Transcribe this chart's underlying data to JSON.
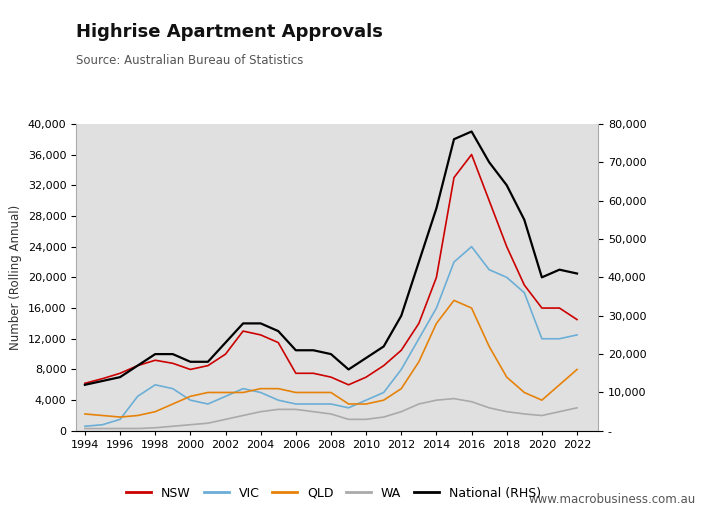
{
  "title": "Highrise Apartment Approvals",
  "source": "Source: Australian Bureau of Statistics",
  "ylabel_left": "Number (Rolling Annual)",
  "website": "www.macrobusiness.com.au",
  "bg_color": "#e0e0e0",
  "fig_bg_color": "#ffffff",
  "left_ylim": [
    0,
    40000
  ],
  "right_ylim": [
    0,
    80000
  ],
  "left_yticks": [
    0,
    4000,
    8000,
    12000,
    16000,
    20000,
    24000,
    28000,
    32000,
    36000,
    40000
  ],
  "right_yticks": [
    0,
    10000,
    20000,
    30000,
    40000,
    50000,
    60000,
    70000,
    80000
  ],
  "xtick_years": [
    1994,
    1996,
    1998,
    2000,
    2002,
    2004,
    2006,
    2008,
    2010,
    2012,
    2014,
    2016,
    2018,
    2020,
    2022
  ],
  "series": {
    "NSW": {
      "color": "#cc0000",
      "lw": 1.2,
      "data_years": [
        1994,
        1995,
        1996,
        1997,
        1998,
        1999,
        2000,
        2001,
        2002,
        2003,
        2004,
        2005,
        2006,
        2007,
        2008,
        2009,
        2010,
        2011,
        2012,
        2013,
        2014,
        2015,
        2016,
        2017,
        2018,
        2019,
        2020,
        2021,
        2022
      ],
      "data_vals": [
        6200,
        6800,
        7500,
        8500,
        9200,
        8800,
        8000,
        8500,
        10000,
        13000,
        12500,
        11500,
        7500,
        7500,
        7000,
        6000,
        7000,
        8500,
        10500,
        14000,
        20000,
        33000,
        36000,
        30000,
        24000,
        19000,
        16000,
        16000,
        14500
      ]
    },
    "VIC": {
      "color": "#6baed6",
      "lw": 1.2,
      "data_years": [
        1994,
        1995,
        1996,
        1997,
        1998,
        1999,
        2000,
        2001,
        2002,
        2003,
        2004,
        2005,
        2006,
        2007,
        2008,
        2009,
        2010,
        2011,
        2012,
        2013,
        2014,
        2015,
        2016,
        2017,
        2018,
        2019,
        2020,
        2021,
        2022
      ],
      "data_vals": [
        600,
        800,
        1500,
        4500,
        6000,
        5500,
        4000,
        3500,
        4500,
        5500,
        5000,
        4000,
        3500,
        3500,
        3500,
        3000,
        4000,
        5000,
        8000,
        12000,
        16000,
        22000,
        24000,
        21000,
        20000,
        18000,
        12000,
        12000,
        12500
      ]
    },
    "QLD": {
      "color": "#e6820a",
      "lw": 1.2,
      "data_years": [
        1994,
        1995,
        1996,
        1997,
        1998,
        1999,
        2000,
        2001,
        2002,
        2003,
        2004,
        2005,
        2006,
        2007,
        2008,
        2009,
        2010,
        2011,
        2012,
        2013,
        2014,
        2015,
        2016,
        2017,
        2018,
        2019,
        2020,
        2021,
        2022
      ],
      "data_vals": [
        2200,
        2000,
        1800,
        2000,
        2500,
        3500,
        4500,
        5000,
        5000,
        5000,
        5500,
        5500,
        5000,
        5000,
        5000,
        3500,
        3500,
        4000,
        5500,
        9000,
        14000,
        17000,
        16000,
        11000,
        7000,
        5000,
        4000,
        6000,
        8000
      ]
    },
    "WA": {
      "color": "#aaaaaa",
      "lw": 1.2,
      "data_years": [
        1994,
        1995,
        1996,
        1997,
        1998,
        1999,
        2000,
        2001,
        2002,
        2003,
        2004,
        2005,
        2006,
        2007,
        2008,
        2009,
        2010,
        2011,
        2012,
        2013,
        2014,
        2015,
        2016,
        2017,
        2018,
        2019,
        2020,
        2021,
        2022
      ],
      "data_vals": [
        300,
        300,
        300,
        300,
        400,
        600,
        800,
        1000,
        1500,
        2000,
        2500,
        2800,
        2800,
        2500,
        2200,
        1500,
        1500,
        1800,
        2500,
        3500,
        4000,
        4200,
        3800,
        3000,
        2500,
        2200,
        2000,
        2500,
        3000
      ]
    },
    "National": {
      "color": "#000000",
      "lw": 1.6,
      "data_years": [
        1994,
        1995,
        1996,
        1997,
        1998,
        1999,
        2000,
        2001,
        2002,
        2003,
        2004,
        2005,
        2006,
        2007,
        2008,
        2009,
        2010,
        2011,
        2012,
        2013,
        2014,
        2015,
        2016,
        2017,
        2018,
        2019,
        2020,
        2021,
        2022
      ],
      "data_vals": [
        12000,
        13000,
        14000,
        17000,
        20000,
        20000,
        18000,
        18000,
        23000,
        28000,
        28000,
        26000,
        21000,
        21000,
        20000,
        16000,
        19000,
        22000,
        30000,
        44000,
        58000,
        76000,
        78000,
        70000,
        64000,
        55000,
        40000,
        42000,
        41000
      ]
    }
  }
}
